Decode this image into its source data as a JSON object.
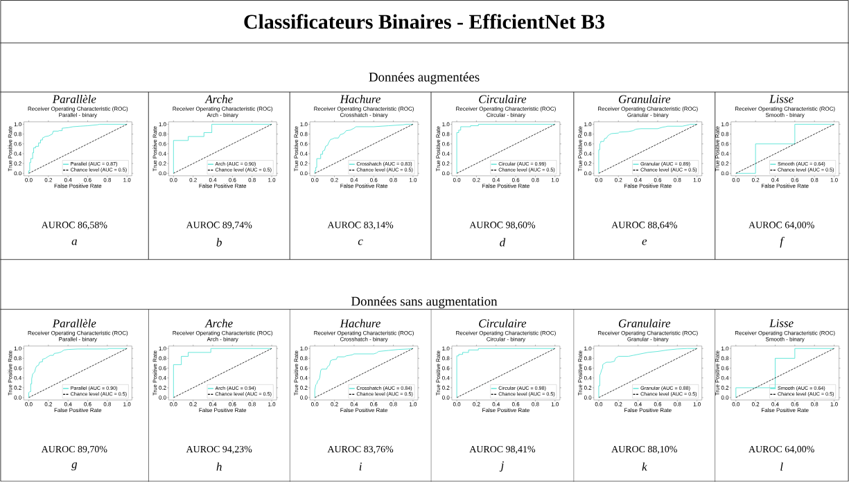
{
  "chart_data": [
    {
      "type": "line",
      "title": "Receiver Operating Characteristic (ROC)",
      "subtitle": "Parallel - binary",
      "xlabel": "False Positive Rate",
      "ylabel": "True Positive Rate",
      "annotations": [
        "Parallèle",
        "AUROC 86,58%",
        "a",
        "Classificateurs Binaires - EfficientNet B3",
        "Données augmentées"
      ],
      "xlim": [
        -0.05,
        1.05
      ],
      "ylim": [
        -0.05,
        1.05
      ],
      "xticks": [
        {
          "value": 0,
          "label": "0.0"
        },
        {
          "value": 0.2,
          "label": "0.2"
        },
        {
          "value": 0.4,
          "label": "0.4"
        },
        {
          "value": 0.6,
          "label": "0.6"
        },
        {
          "value": 0.8,
          "label": "0.8"
        },
        {
          "value": 1,
          "label": "1.0"
        }
      ],
      "yticks": [
        {
          "value": 0,
          "label": "0.0"
        },
        {
          "value": 0.2,
          "label": "0.2"
        },
        {
          "value": 0.4,
          "label": "0.4"
        },
        {
          "value": 0.6,
          "label": "0.6"
        },
        {
          "value": 0.8,
          "label": "0.8"
        },
        {
          "value": 1,
          "label": "1.0"
        }
      ],
      "legend": "bottom right",
      "series": [
        {
          "name": "Parallel (AUC = 0.87)",
          "color": "#40e0d0",
          "x": [
            0,
            0,
            0.01,
            0.01,
            0.02,
            0.02,
            0.04,
            0.04,
            0.05,
            0.05,
            0.07,
            0.07,
            0.1,
            0.1,
            0.12,
            0.12,
            0.14,
            0.14,
            0.17,
            0.2,
            0.22,
            0.24,
            0.25,
            0.3,
            0.31,
            0.34,
            0.34,
            0.4,
            0.45,
            0.52,
            0.6,
            0.7,
            0.72,
            1
          ],
          "values": [
            0,
            0.05,
            0.05,
            0.22,
            0.22,
            0.3,
            0.3,
            0.42,
            0.42,
            0.52,
            0.52,
            0.55,
            0.55,
            0.62,
            0.62,
            0.68,
            0.68,
            0.72,
            0.75,
            0.76,
            0.78,
            0.8,
            0.86,
            0.86,
            0.87,
            0.87,
            0.92,
            0.93,
            0.95,
            0.96,
            0.97,
            0.99,
            1,
            1
          ]
        },
        {
          "name": "Chance level (AUC = 0.5)",
          "color": "#000000",
          "line_style": "dashed",
          "x": [
            0,
            1
          ],
          "values": [
            0,
            1
          ]
        }
      ]
    },
    {
      "type": "line",
      "title": "Receiver Operating Characteristic (ROC)",
      "subtitle": "Arch - binary",
      "xlabel": "False Positive Rate",
      "ylabel": "True Positive Rate",
      "annotations": [
        "Arche",
        "AUROC 89,74%",
        "b"
      ],
      "xlim": [
        -0.05,
        1.05
      ],
      "ylim": [
        -0.05,
        1.05
      ],
      "xticks": [
        {
          "value": 0,
          "label": "0.0"
        },
        {
          "value": 0.2,
          "label": "0.2"
        },
        {
          "value": 0.4,
          "label": "0.4"
        },
        {
          "value": 0.6,
          "label": "0.6"
        },
        {
          "value": 0.8,
          "label": "0.8"
        },
        {
          "value": 1,
          "label": "1.0"
        }
      ],
      "yticks": [
        {
          "value": 0,
          "label": "0.0"
        },
        {
          "value": 0.2,
          "label": "0.2"
        },
        {
          "value": 0.4,
          "label": "0.4"
        },
        {
          "value": 0.6,
          "label": "0.6"
        },
        {
          "value": 0.8,
          "label": "0.8"
        },
        {
          "value": 1,
          "label": "1.0"
        }
      ],
      "legend": "bottom right",
      "series": [
        {
          "name": "Arch (AUC = 0.90)",
          "color": "#40e0d0",
          "x": [
            0,
            0,
            0.15,
            0.15,
            0.31,
            0.31,
            0.39,
            0.39,
            1
          ],
          "values": [
            0,
            0.67,
            0.67,
            0.75,
            0.75,
            0.83,
            0.83,
            1,
            1
          ]
        },
        {
          "name": "Chance level (AUC = 0.5)",
          "color": "#000000",
          "line_style": "dashed",
          "x": [
            0,
            1
          ],
          "values": [
            0,
            1
          ]
        }
      ]
    },
    {
      "type": "line",
      "title": "Receiver Operating Characteristic (ROC)",
      "subtitle": "Crosshatch - binary",
      "xlabel": "False Positive Rate",
      "ylabel": "True Positive Rate",
      "annotations": [
        "Hachure",
        "AUROC 83,14%",
        "c"
      ],
      "xlim": [
        -0.05,
        1.05
      ],
      "ylim": [
        -0.05,
        1.05
      ],
      "xticks": [
        {
          "value": 0,
          "label": "0.0"
        },
        {
          "value": 0.2,
          "label": "0.2"
        },
        {
          "value": 0.4,
          "label": "0.4"
        },
        {
          "value": 0.6,
          "label": "0.6"
        },
        {
          "value": 0.8,
          "label": "0.8"
        },
        {
          "value": 1,
          "label": "1.0"
        }
      ],
      "yticks": [
        {
          "value": 0,
          "label": "0.0"
        },
        {
          "value": 0.2,
          "label": "0.2"
        },
        {
          "value": 0.4,
          "label": "0.4"
        },
        {
          "value": 0.6,
          "label": "0.6"
        },
        {
          "value": 0.8,
          "label": "0.8"
        },
        {
          "value": 1,
          "label": "1.0"
        }
      ],
      "legend": "bottom right",
      "series": [
        {
          "name": "Crosshatch (AUC = 0.83)",
          "color": "#40e0d0",
          "x": [
            0,
            0,
            0.01,
            0.01,
            0.02,
            0.02,
            0.06,
            0.06,
            0.08,
            0.08,
            0.1,
            0.11,
            0.13,
            0.14,
            0.16,
            0.18,
            0.2,
            0.24,
            0.26,
            0.28,
            0.3,
            0.32,
            0.36,
            0.4,
            0.42,
            0.6,
            0.75,
            0.9,
            0.93,
            1
          ],
          "values": [
            0,
            0.05,
            0.05,
            0.12,
            0.12,
            0.3,
            0.3,
            0.39,
            0.39,
            0.45,
            0.47,
            0.55,
            0.57,
            0.62,
            0.69,
            0.7,
            0.72,
            0.72,
            0.79,
            0.8,
            0.82,
            0.87,
            0.88,
            0.92,
            0.95,
            0.95,
            0.97,
            0.99,
            1,
            1
          ]
        },
        {
          "name": "Chance level (AUC = 0.5)",
          "color": "#000000",
          "line_style": "dashed",
          "x": [
            0,
            1
          ],
          "values": [
            0,
            1
          ]
        }
      ]
    },
    {
      "type": "line",
      "title": "Receiver Operating Characteristic (ROC)",
      "subtitle": "Circular - binary",
      "xlabel": "False Positive Rate",
      "ylabel": "True Positive Rate",
      "annotations": [
        "Circulaire",
        "AUROC 98,60%",
        "d"
      ],
      "xlim": [
        -0.05,
        1.05
      ],
      "ylim": [
        -0.05,
        1.05
      ],
      "xticks": [
        {
          "value": 0,
          "label": "0.0"
        },
        {
          "value": 0.2,
          "label": "0.2"
        },
        {
          "value": 0.4,
          "label": "0.4"
        },
        {
          "value": 0.6,
          "label": "0.6"
        },
        {
          "value": 0.8,
          "label": "0.8"
        },
        {
          "value": 1,
          "label": "1.0"
        }
      ],
      "yticks": [
        {
          "value": 0,
          "label": "0.0"
        },
        {
          "value": 0.2,
          "label": "0.2"
        },
        {
          "value": 0.4,
          "label": "0.4"
        },
        {
          "value": 0.6,
          "label": "0.6"
        },
        {
          "value": 0.8,
          "label": "0.8"
        },
        {
          "value": 1,
          "label": "1.0"
        }
      ],
      "legend": "bottom right",
      "series": [
        {
          "name": "Circular (AUC = 0.99)",
          "color": "#40e0d0",
          "x": [
            0,
            0,
            0.02,
            0.02,
            0.04,
            0.04,
            0.14,
            0.14,
            0.22,
            0.22,
            1
          ],
          "values": [
            0,
            0.83,
            0.83,
            0.88,
            0.88,
            0.95,
            0.95,
            0.97,
            0.97,
            1,
            1
          ]
        },
        {
          "name": "Chance level (AUC = 0.5)",
          "color": "#000000",
          "line_style": "dashed",
          "x": [
            0,
            1
          ],
          "values": [
            0,
            1
          ]
        }
      ]
    },
    {
      "type": "line",
      "title": "Receiver Operating Characteristic (ROC)",
      "subtitle": "Granular - binary",
      "xlabel": "False Positive Rate",
      "ylabel": "True Positive Rate",
      "annotations": [
        "Granulaire",
        "AUROC 88,64%",
        "e"
      ],
      "xlim": [
        -0.05,
        1.05
      ],
      "ylim": [
        -0.05,
        1.05
      ],
      "xticks": [
        {
          "value": 0,
          "label": "0.0"
        },
        {
          "value": 0.2,
          "label": "0.2"
        },
        {
          "value": 0.4,
          "label": "0.4"
        },
        {
          "value": 0.6,
          "label": "0.6"
        },
        {
          "value": 0.8,
          "label": "0.8"
        },
        {
          "value": 1,
          "label": "1.0"
        }
      ],
      "yticks": [
        {
          "value": 0,
          "label": "0.0"
        },
        {
          "value": 0.2,
          "label": "0.2"
        },
        {
          "value": 0.4,
          "label": "0.4"
        },
        {
          "value": 0.6,
          "label": "0.6"
        },
        {
          "value": 0.8,
          "label": "0.8"
        },
        {
          "value": 1,
          "label": "1.0"
        }
      ],
      "legend": "bottom right",
      "series": [
        {
          "name": "Granular (AUC = 0.89)",
          "color": "#40e0d0",
          "x": [
            0,
            0,
            0.01,
            0.01,
            0.02,
            0.02,
            0.05,
            0.06,
            0.08,
            0.09,
            0.11,
            0.13,
            0.2,
            0.21,
            0.3,
            0.35,
            0.38,
            0.43,
            0.6,
            0.65,
            0.68,
            0.7,
            0.85,
            0.92,
            0.93,
            1
          ],
          "values": [
            0,
            0.48,
            0.48,
            0.6,
            0.62,
            0.65,
            0.65,
            0.71,
            0.72,
            0.76,
            0.79,
            0.81,
            0.82,
            0.84,
            0.85,
            0.87,
            0.9,
            0.91,
            0.91,
            0.94,
            0.95,
            0.96,
            0.96,
            0.99,
            1,
            1
          ]
        },
        {
          "name": "Chance level (AUC = 0.5)",
          "color": "#000000",
          "line_style": "dashed",
          "x": [
            0,
            1
          ],
          "values": [
            0,
            1
          ]
        }
      ]
    },
    {
      "type": "line",
      "title": "Receiver Operating Characteristic (ROC)",
      "subtitle": "Smooth - binary",
      "xlabel": "False Positive Rate",
      "ylabel": "True Positive Rate",
      "annotations": [
        "Lisse",
        "AUROC 64,00%",
        "f"
      ],
      "xlim": [
        -0.05,
        1.05
      ],
      "ylim": [
        -0.05,
        1.05
      ],
      "xticks": [
        {
          "value": 0,
          "label": "0.0"
        },
        {
          "value": 0.2,
          "label": "0.2"
        },
        {
          "value": 0.4,
          "label": "0.4"
        },
        {
          "value": 0.6,
          "label": "0.6"
        },
        {
          "value": 0.8,
          "label": "0.8"
        },
        {
          "value": 1,
          "label": "1.0"
        }
      ],
      "yticks": [
        {
          "value": 0,
          "label": "0.0"
        },
        {
          "value": 0.2,
          "label": "0.2"
        },
        {
          "value": 0.4,
          "label": "0.4"
        },
        {
          "value": 0.6,
          "label": "0.6"
        },
        {
          "value": 0.8,
          "label": "0.8"
        },
        {
          "value": 1,
          "label": "1.0"
        }
      ],
      "legend": "bottom right",
      "series": [
        {
          "name": "Smooth (AUC = 0.64)",
          "color": "#40e0d0",
          "x": [
            0,
            0.2,
            0.2,
            0.6,
            0.6,
            1
          ],
          "values": [
            0,
            0,
            0.6,
            0.6,
            1,
            1
          ]
        },
        {
          "name": "Chance level (AUC = 0.5)",
          "color": "#000000",
          "line_style": "dashed",
          "x": [
            0,
            1
          ],
          "values": [
            0,
            1
          ]
        }
      ]
    },
    {
      "type": "line",
      "title": "Receiver Operating Characteristic (ROC)",
      "subtitle": "Parallel - binary",
      "xlabel": "False Positive Rate",
      "ylabel": "True Positive Rate",
      "annotations": [
        "Parallèle",
        "AUROC 89,70%",
        "g",
        "Données sans augmentation"
      ],
      "xlim": [
        -0.05,
        1.05
      ],
      "ylim": [
        -0.05,
        1.05
      ],
      "xticks": [
        {
          "value": 0,
          "label": "0.0"
        },
        {
          "value": 0.2,
          "label": "0.2"
        },
        {
          "value": 0.4,
          "label": "0.4"
        },
        {
          "value": 0.6,
          "label": "0.6"
        },
        {
          "value": 0.8,
          "label": "0.8"
        },
        {
          "value": 1,
          "label": "1.0"
        }
      ],
      "yticks": [
        {
          "value": 0,
          "label": "0.0"
        },
        {
          "value": 0.2,
          "label": "0.2"
        },
        {
          "value": 0.4,
          "label": "0.4"
        },
        {
          "value": 0.6,
          "label": "0.6"
        },
        {
          "value": 0.8,
          "label": "0.8"
        },
        {
          "value": 1,
          "label": "1.0"
        }
      ],
      "legend": "bottom right",
      "series": [
        {
          "name": "Parallel (AUC = 0.90)",
          "color": "#40e0d0",
          "x": [
            0,
            0,
            0.01,
            0.02,
            0.02,
            0.03,
            0.03,
            0.04,
            0.05,
            0.06,
            0.07,
            0.08,
            0.1,
            0.11,
            0.14,
            0.14,
            0.17,
            0.2,
            0.22,
            0.25,
            0.26,
            0.3,
            0.33,
            0.36,
            0.4,
            0.5,
            0.8,
            0.82,
            1
          ],
          "values": [
            0,
            0.1,
            0.12,
            0.12,
            0.28,
            0.28,
            0.38,
            0.48,
            0.5,
            0.52,
            0.6,
            0.64,
            0.66,
            0.72,
            0.73,
            0.78,
            0.8,
            0.84,
            0.86,
            0.86,
            0.9,
            0.91,
            0.93,
            0.97,
            0.98,
            0.99,
            0.99,
            1,
            1
          ]
        },
        {
          "name": "Chance level (AUC = 0.5)",
          "color": "#000000",
          "line_style": "dashed",
          "x": [
            0,
            1
          ],
          "values": [
            0,
            1
          ]
        }
      ]
    },
    {
      "type": "line",
      "title": "Receiver Operating Characteristic (ROC)",
      "subtitle": "Arch - binary",
      "xlabel": "False Positive Rate",
      "ylabel": "True Positive Rate",
      "annotations": [
        "Arche",
        "AUROC 94,23%",
        "h"
      ],
      "xlim": [
        -0.05,
        1.05
      ],
      "ylim": [
        -0.05,
        1.05
      ],
      "xticks": [
        {
          "value": 0,
          "label": "0.0"
        },
        {
          "value": 0.2,
          "label": "0.2"
        },
        {
          "value": 0.4,
          "label": "0.4"
        },
        {
          "value": 0.6,
          "label": "0.6"
        },
        {
          "value": 0.8,
          "label": "0.8"
        },
        {
          "value": 1,
          "label": "1.0"
        }
      ],
      "yticks": [
        {
          "value": 0,
          "label": "0.0"
        },
        {
          "value": 0.2,
          "label": "0.2"
        },
        {
          "value": 0.4,
          "label": "0.4"
        },
        {
          "value": 0.6,
          "label": "0.6"
        },
        {
          "value": 0.8,
          "label": "0.8"
        },
        {
          "value": 1,
          "label": "1.0"
        }
      ],
      "legend": "bottom right",
      "series": [
        {
          "name": "Arch (AUC = 0.94)",
          "color": "#40e0d0",
          "x": [
            0,
            0,
            0.08,
            0.08,
            0.15,
            0.15,
            0.38,
            0.38,
            1
          ],
          "values": [
            0,
            0.67,
            0.67,
            0.84,
            0.84,
            0.92,
            0.92,
            1,
            1
          ]
        },
        {
          "name": "Chance level (AUC = 0.5)",
          "color": "#000000",
          "line_style": "dashed",
          "x": [
            0,
            1
          ],
          "values": [
            0,
            1
          ]
        }
      ]
    },
    {
      "type": "line",
      "title": "Receiver Operating Characteristic (ROC)",
      "subtitle": "Crosshatch - binary",
      "xlabel": "False Positive Rate",
      "ylabel": "True Positive Rate",
      "annotations": [
        "Hachure",
        "AUROC 83,76%",
        "i"
      ],
      "xlim": [
        -0.05,
        1.05
      ],
      "ylim": [
        -0.05,
        1.05
      ],
      "xticks": [
        {
          "value": 0,
          "label": "0.0"
        },
        {
          "value": 0.2,
          "label": "0.2"
        },
        {
          "value": 0.4,
          "label": "0.4"
        },
        {
          "value": 0.6,
          "label": "0.6"
        },
        {
          "value": 0.8,
          "label": "0.8"
        },
        {
          "value": 1,
          "label": "1.0"
        }
      ],
      "yticks": [
        {
          "value": 0,
          "label": "0.0"
        },
        {
          "value": 0.2,
          "label": "0.2"
        },
        {
          "value": 0.4,
          "label": "0.4"
        },
        {
          "value": 0.6,
          "label": "0.6"
        },
        {
          "value": 0.8,
          "label": "0.8"
        },
        {
          "value": 1,
          "label": "1.0"
        }
      ],
      "legend": "bottom right",
      "series": [
        {
          "name": "Crosshatch (AUC = 0.84)",
          "color": "#40e0d0",
          "x": [
            0,
            0,
            0.01,
            0.02,
            0.03,
            0.04,
            0.05,
            0.06,
            0.07,
            0.12,
            0.13,
            0.15,
            0.16,
            0.18,
            0.22,
            0.23,
            0.3,
            0.32,
            0.38,
            0.4,
            0.6,
            0.63,
            0.65,
            0.75,
            0.85,
            0.95,
            1
          ],
          "values": [
            0,
            0.15,
            0.26,
            0.28,
            0.34,
            0.36,
            0.4,
            0.55,
            0.58,
            0.58,
            0.63,
            0.66,
            0.75,
            0.77,
            0.78,
            0.83,
            0.83,
            0.85,
            0.87,
            0.89,
            0.89,
            0.91,
            0.94,
            0.96,
            0.98,
            0.99,
            1
          ]
        },
        {
          "name": "Chance level (AUC = 0.5)",
          "color": "#000000",
          "line_style": "dashed",
          "x": [
            0,
            1
          ],
          "values": [
            0,
            1
          ]
        }
      ]
    },
    {
      "type": "line",
      "title": "Receiver Operating Characteristic (ROC)",
      "subtitle": "Circular - binary",
      "xlabel": "False Positive Rate",
      "ylabel": "True Positive Rate",
      "annotations": [
        "Circulaire",
        "AUROC 98,41%",
        "j"
      ],
      "xlim": [
        -0.05,
        1.05
      ],
      "ylim": [
        -0.05,
        1.05
      ],
      "xticks": [
        {
          "value": 0,
          "label": "0.0"
        },
        {
          "value": 0.2,
          "label": "0.2"
        },
        {
          "value": 0.4,
          "label": "0.4"
        },
        {
          "value": 0.6,
          "label": "0.6"
        },
        {
          "value": 0.8,
          "label": "0.8"
        },
        {
          "value": 1,
          "label": "1.0"
        }
      ],
      "yticks": [
        {
          "value": 0,
          "label": "0.0"
        },
        {
          "value": 0.2,
          "label": "0.2"
        },
        {
          "value": 0.4,
          "label": "0.4"
        },
        {
          "value": 0.6,
          "label": "0.6"
        },
        {
          "value": 0.8,
          "label": "0.8"
        },
        {
          "value": 1,
          "label": "1.0"
        }
      ],
      "legend": "bottom right",
      "series": [
        {
          "name": "Circular (AUC = 0.98)",
          "color": "#40e0d0",
          "x": [
            0,
            0,
            0.02,
            0.02,
            0.06,
            0.06,
            0.12,
            0.12,
            0.22,
            0.22,
            1
          ],
          "values": [
            0,
            0.85,
            0.85,
            0.88,
            0.88,
            0.92,
            0.92,
            0.97,
            0.97,
            1,
            1
          ]
        },
        {
          "name": "Chance level (AUC = 0.5)",
          "color": "#000000",
          "line_style": "dashed",
          "x": [
            0,
            1
          ],
          "values": [
            0,
            1
          ]
        }
      ]
    },
    {
      "type": "line",
      "title": "Receiver Operating Characteristic (ROC)",
      "subtitle": "Granular - binary",
      "xlabel": "False Positive Rate",
      "ylabel": "True Positive Rate",
      "annotations": [
        "Granulaire",
        "AUROC 88,10%",
        "k"
      ],
      "xlim": [
        -0.05,
        1.05
      ],
      "ylim": [
        -0.05,
        1.05
      ],
      "xticks": [
        {
          "value": 0,
          "label": "0.0"
        },
        {
          "value": 0.2,
          "label": "0.2"
        },
        {
          "value": 0.4,
          "label": "0.4"
        },
        {
          "value": 0.6,
          "label": "0.6"
        },
        {
          "value": 0.8,
          "label": "0.8"
        },
        {
          "value": 1,
          "label": "1.0"
        }
      ],
      "yticks": [
        {
          "value": 0,
          "label": "0.0"
        },
        {
          "value": 0.2,
          "label": "0.2"
        },
        {
          "value": 0.4,
          "label": "0.4"
        },
        {
          "value": 0.6,
          "label": "0.6"
        },
        {
          "value": 0.8,
          "label": "0.8"
        },
        {
          "value": 1,
          "label": "1.0"
        }
      ],
      "legend": "bottom right",
      "series": [
        {
          "name": "Granular (AUC = 0.88)",
          "color": "#40e0d0",
          "x": [
            0,
            0,
            0.01,
            0.01,
            0.02,
            0.03,
            0.04,
            0.04,
            0.06,
            0.08,
            0.12,
            0.16,
            0.17,
            0.2,
            0.3,
            0.35,
            0.4,
            0.45,
            0.5,
            0.6,
            0.7,
            0.8,
            0.9,
            1
          ],
          "values": [
            0,
            0.24,
            0.24,
            0.45,
            0.5,
            0.57,
            0.6,
            0.67,
            0.7,
            0.72,
            0.72,
            0.74,
            0.8,
            0.84,
            0.84,
            0.86,
            0.88,
            0.9,
            0.92,
            0.94,
            0.97,
            0.99,
            1,
            1
          ]
        },
        {
          "name": "Chance level (AUC = 0.5)",
          "color": "#000000",
          "line_style": "dashed",
          "x": [
            0,
            1
          ],
          "values": [
            0,
            1
          ]
        }
      ]
    },
    {
      "type": "line",
      "title": "Receiver Operating Characteristic (ROC)",
      "subtitle": "Smooth - binary",
      "xlabel": "False Positive Rate",
      "ylabel": "True Positive Rate",
      "annotations": [
        "Lisse",
        "AUROC 64,00%",
        "l"
      ],
      "xlim": [
        -0.05,
        1.05
      ],
      "ylim": [
        -0.05,
        1.05
      ],
      "xticks": [
        {
          "value": 0,
          "label": "0.0"
        },
        {
          "value": 0.2,
          "label": "0.2"
        },
        {
          "value": 0.4,
          "label": "0.4"
        },
        {
          "value": 0.6,
          "label": "0.6"
        },
        {
          "value": 0.8,
          "label": "0.8"
        },
        {
          "value": 1,
          "label": "1.0"
        }
      ],
      "yticks": [
        {
          "value": 0,
          "label": "0.0"
        },
        {
          "value": 0.2,
          "label": "0.2"
        },
        {
          "value": 0.4,
          "label": "0.4"
        },
        {
          "value": 0.6,
          "label": "0.6"
        },
        {
          "value": 0.8,
          "label": "0.8"
        },
        {
          "value": 1,
          "label": "1.0"
        }
      ],
      "legend": "bottom right",
      "series": [
        {
          "name": "Smooth (AUC = 0.64)",
          "color": "#40e0d0",
          "x": [
            0,
            0,
            0.4,
            0.4,
            0.6,
            0.6,
            1
          ],
          "values": [
            0,
            0.2,
            0.2,
            0.8,
            0.8,
            1,
            1
          ]
        },
        {
          "name": "Chance level (AUC = 0.5)",
          "color": "#000000",
          "line_style": "dashed",
          "x": [
            0,
            1
          ],
          "values": [
            0,
            1
          ]
        }
      ]
    }
  ]
}
